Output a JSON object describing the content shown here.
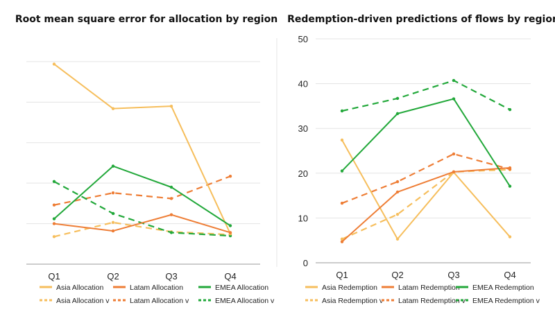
{
  "colors": {
    "asia": "#F6BE5C",
    "latam": "#EE7D35",
    "emea": "#22A83A"
  },
  "chart_data": [
    {
      "type": "line",
      "title": "Root mean square error for allocation by region",
      "categories": [
        "Q1",
        "Q2",
        "Q3",
        "Q4"
      ],
      "ylim": [
        0,
        5.7
      ],
      "yticks": [],
      "grid": true,
      "legend_position": "bottom",
      "series": [
        {
          "name": "Asia Allocation",
          "values": [
            4.94,
            3.84,
            3.9,
            0.75
          ],
          "color": "#F6BE5C",
          "dashed": false
        },
        {
          "name": "Latam Allocation",
          "values": [
            1.0,
            0.82,
            1.22,
            0.78
          ],
          "color": "#EE7D35",
          "dashed": false
        },
        {
          "name": "EMEA Allocation",
          "values": [
            1.12,
            2.42,
            1.9,
            0.95
          ],
          "color": "#22A83A",
          "dashed": false
        },
        {
          "name": "Asia Allocation v",
          "values": [
            0.68,
            1.03,
            0.8,
            0.73
          ],
          "color": "#F6BE5C",
          "dashed": true
        },
        {
          "name": "Latam Allocation v",
          "values": [
            1.46,
            1.76,
            1.62,
            2.17
          ],
          "color": "#EE7D35",
          "dashed": true
        },
        {
          "name": "EMEA Allocation v",
          "values": [
            2.04,
            1.25,
            0.78,
            0.7
          ],
          "color": "#22A83A",
          "dashed": true
        }
      ]
    },
    {
      "type": "line",
      "title": "Redemption-driven predictions of flows by region",
      "categories": [
        "Q1",
        "Q2",
        "Q3",
        "Q4"
      ],
      "ylim": [
        0,
        50
      ],
      "yticks": [
        0,
        10,
        20,
        30,
        40,
        50
      ],
      "grid": true,
      "legend_position": "bottom",
      "series": [
        {
          "name": "Asia Redemption",
          "values": [
            27.4,
            5.3,
            20.2,
            5.8
          ],
          "color": "#F6BE5C",
          "dashed": false
        },
        {
          "name": "Latam Redemption",
          "values": [
            4.7,
            15.8,
            20.3,
            21.2
          ],
          "color": "#EE7D35",
          "dashed": false
        },
        {
          "name": "EMEA Redemption",
          "values": [
            20.5,
            33.3,
            36.6,
            17.1
          ],
          "color": "#22A83A",
          "dashed": false
        },
        {
          "name": "Asia Redemption v",
          "values": [
            5.3,
            10.8,
            20.3,
            20.8
          ],
          "color": "#F6BE5C",
          "dashed": true
        },
        {
          "name": "Latam Redemption v",
          "values": [
            13.3,
            18.1,
            24.3,
            20.9
          ],
          "color": "#EE7D35",
          "dashed": true
        },
        {
          "name": "EMEA Redemption v",
          "values": [
            33.9,
            36.7,
            40.7,
            34.2
          ],
          "color": "#22A83A",
          "dashed": true
        }
      ]
    }
  ]
}
